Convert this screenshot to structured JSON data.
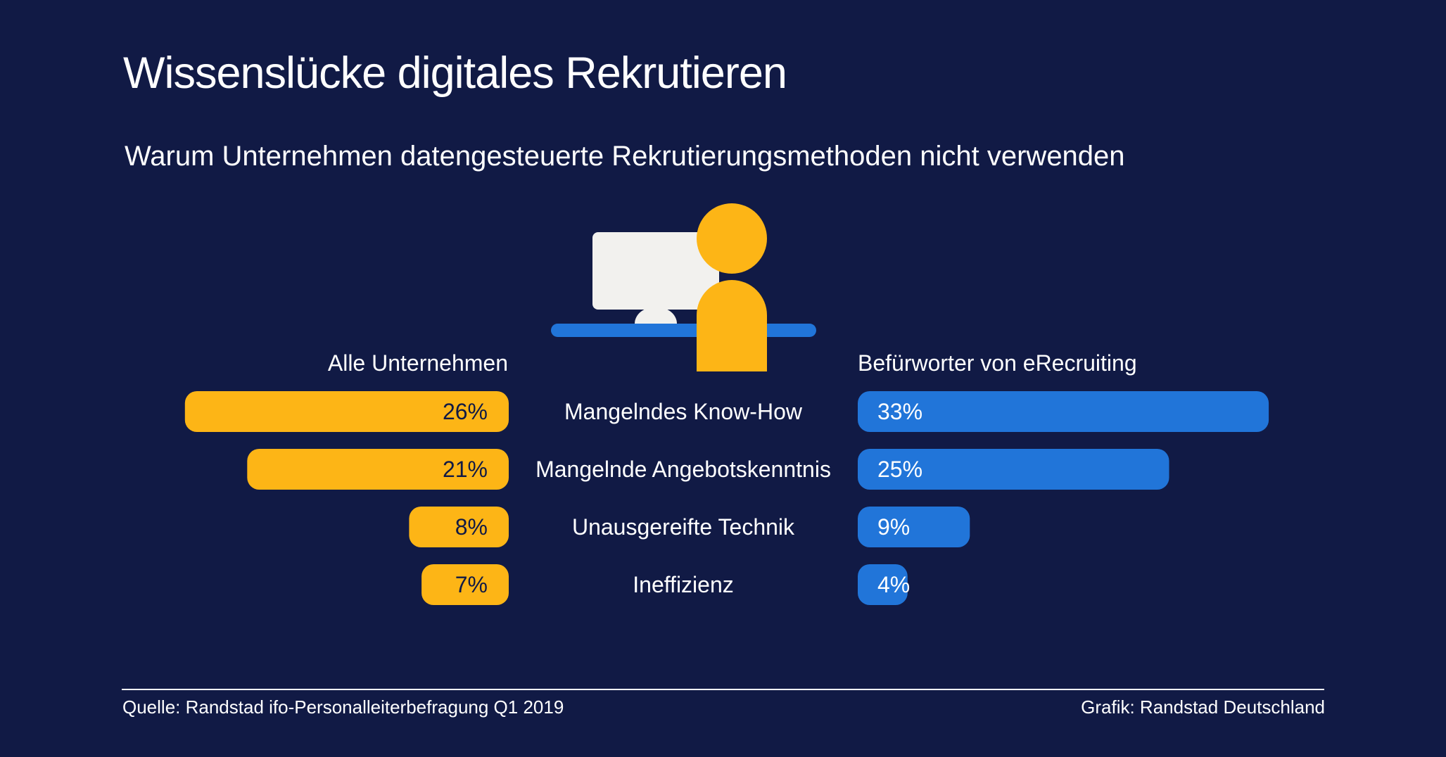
{
  "colors": {
    "background": "#111a45",
    "left_series": "#fdb516",
    "right_series": "#2175d9",
    "monitor": "#f2f1ee",
    "text": "#ffffff",
    "bar_text_dark": "#111a45"
  },
  "header": {
    "title": "Wissenslücke digitales Rekrutieren",
    "subtitle": "Warum Unternehmen datengesteuerte Rekrutierungsmethoden nicht verwenden"
  },
  "illustration": {
    "icon": "person-at-computer-icon"
  },
  "chart_data": {
    "type": "bar",
    "orientation": "horizontal-butterfly",
    "title": "Wissenslücke digitales Rekrutieren",
    "subtitle": "Warum Unternehmen datengesteuerte Rekrutierungsmethoden nicht verwenden",
    "categories": [
      "Mangelndes Know-How",
      "Mangelnde Angebotskenntnis",
      "Unausgereifte Technik",
      "Ineffizienz"
    ],
    "series": [
      {
        "name": "Alle Unternehmen",
        "side": "left",
        "values": [
          26,
          21,
          8,
          7
        ],
        "labels": [
          "26%",
          "21%",
          "8%",
          "7%"
        ]
      },
      {
        "name": "Befürworter von eRecruiting",
        "side": "right",
        "values": [
          33,
          25,
          9,
          4
        ],
        "labels": [
          "33%",
          "25%",
          "9%",
          "4%"
        ]
      }
    ],
    "unit": "%",
    "xlim": [
      0,
      35
    ]
  },
  "footer": {
    "source": "Quelle: Randstad ifo-Personalleiterbefragung Q1 2019",
    "credit": "Grafik: Randstad Deutschland"
  }
}
